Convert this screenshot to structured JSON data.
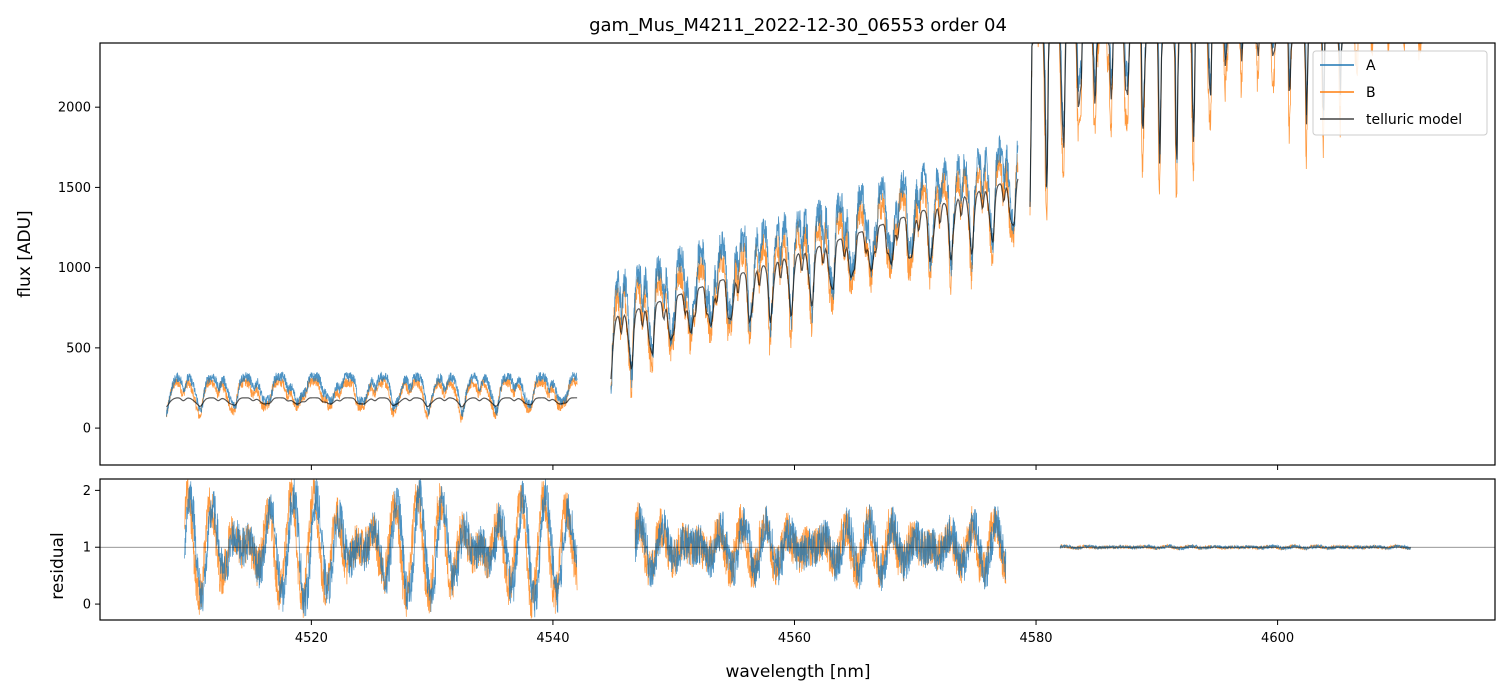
{
  "chart_data": [
    {
      "type": "line",
      "panel": "top",
      "title": "gam_Mus_M4211_2022-12-30_06553  order 04",
      "xlabel": "",
      "ylabel": "flux [ADU]",
      "xlim": [
        4502.5,
        4618.0
      ],
      "ylim": [
        -230,
        2400
      ],
      "yticks": [
        0,
        500,
        1000,
        1500,
        2000
      ],
      "xticks": [
        4520,
        4540,
        4560,
        4580,
        4600
      ],
      "legend_position": "top-right",
      "segments": [
        {
          "x0": 4508.0,
          "x1": 4542.0,
          "base": 150,
          "amp": 280,
          "period": 2.72,
          "model_amp": 0.25,
          "noise": 0.22
        },
        {
          "x0": 4544.8,
          "x1": 4578.5,
          "base": 420,
          "slope": 26,
          "amp": 800,
          "period": 1.66,
          "model_amp": 0.6,
          "noise": 0.22
        },
        {
          "x0": 4579.5,
          "x1": 4612.0,
          "base": 1900,
          "slope": 22,
          "amp": 2300,
          "period": 1.35,
          "model_amp": 0.95,
          "noise": 0.08
        }
      ],
      "series": [
        {
          "name": "A",
          "color": "#1f77b4",
          "opacity": 0.8,
          "width": 0.8
        },
        {
          "name": "B",
          "color": "#ff7f0e",
          "opacity": 0.8,
          "width": 0.8
        },
        {
          "name": "telluric model",
          "color": "#000000",
          "opacity": 0.65,
          "width": 1.2
        }
      ]
    },
    {
      "type": "line",
      "panel": "bottom",
      "xlabel": "wavelength [nm]",
      "ylabel": "residual",
      "xlim": [
        4502.5,
        4618.0
      ],
      "ylim": [
        -0.28,
        2.2
      ],
      "yticks": [
        0,
        1,
        2
      ],
      "xticks": [
        4520,
        4540,
        4560,
        4580,
        4600
      ],
      "reference_line": 1,
      "segments": [
        {
          "x0": 4509.5,
          "x1": 4542.0,
          "amp": 0.95,
          "noise": 0.35
        },
        {
          "x0": 4546.8,
          "x1": 4577.5,
          "amp": 0.45,
          "noise": 0.35
        },
        {
          "x0": 4582.0,
          "x1": 4611.0,
          "amp": 0.02,
          "noise": 0.03
        }
      ],
      "series": [
        {
          "name": "A",
          "color": "#1f77b4"
        },
        {
          "name": "B",
          "color": "#ff7f0e"
        }
      ]
    }
  ]
}
